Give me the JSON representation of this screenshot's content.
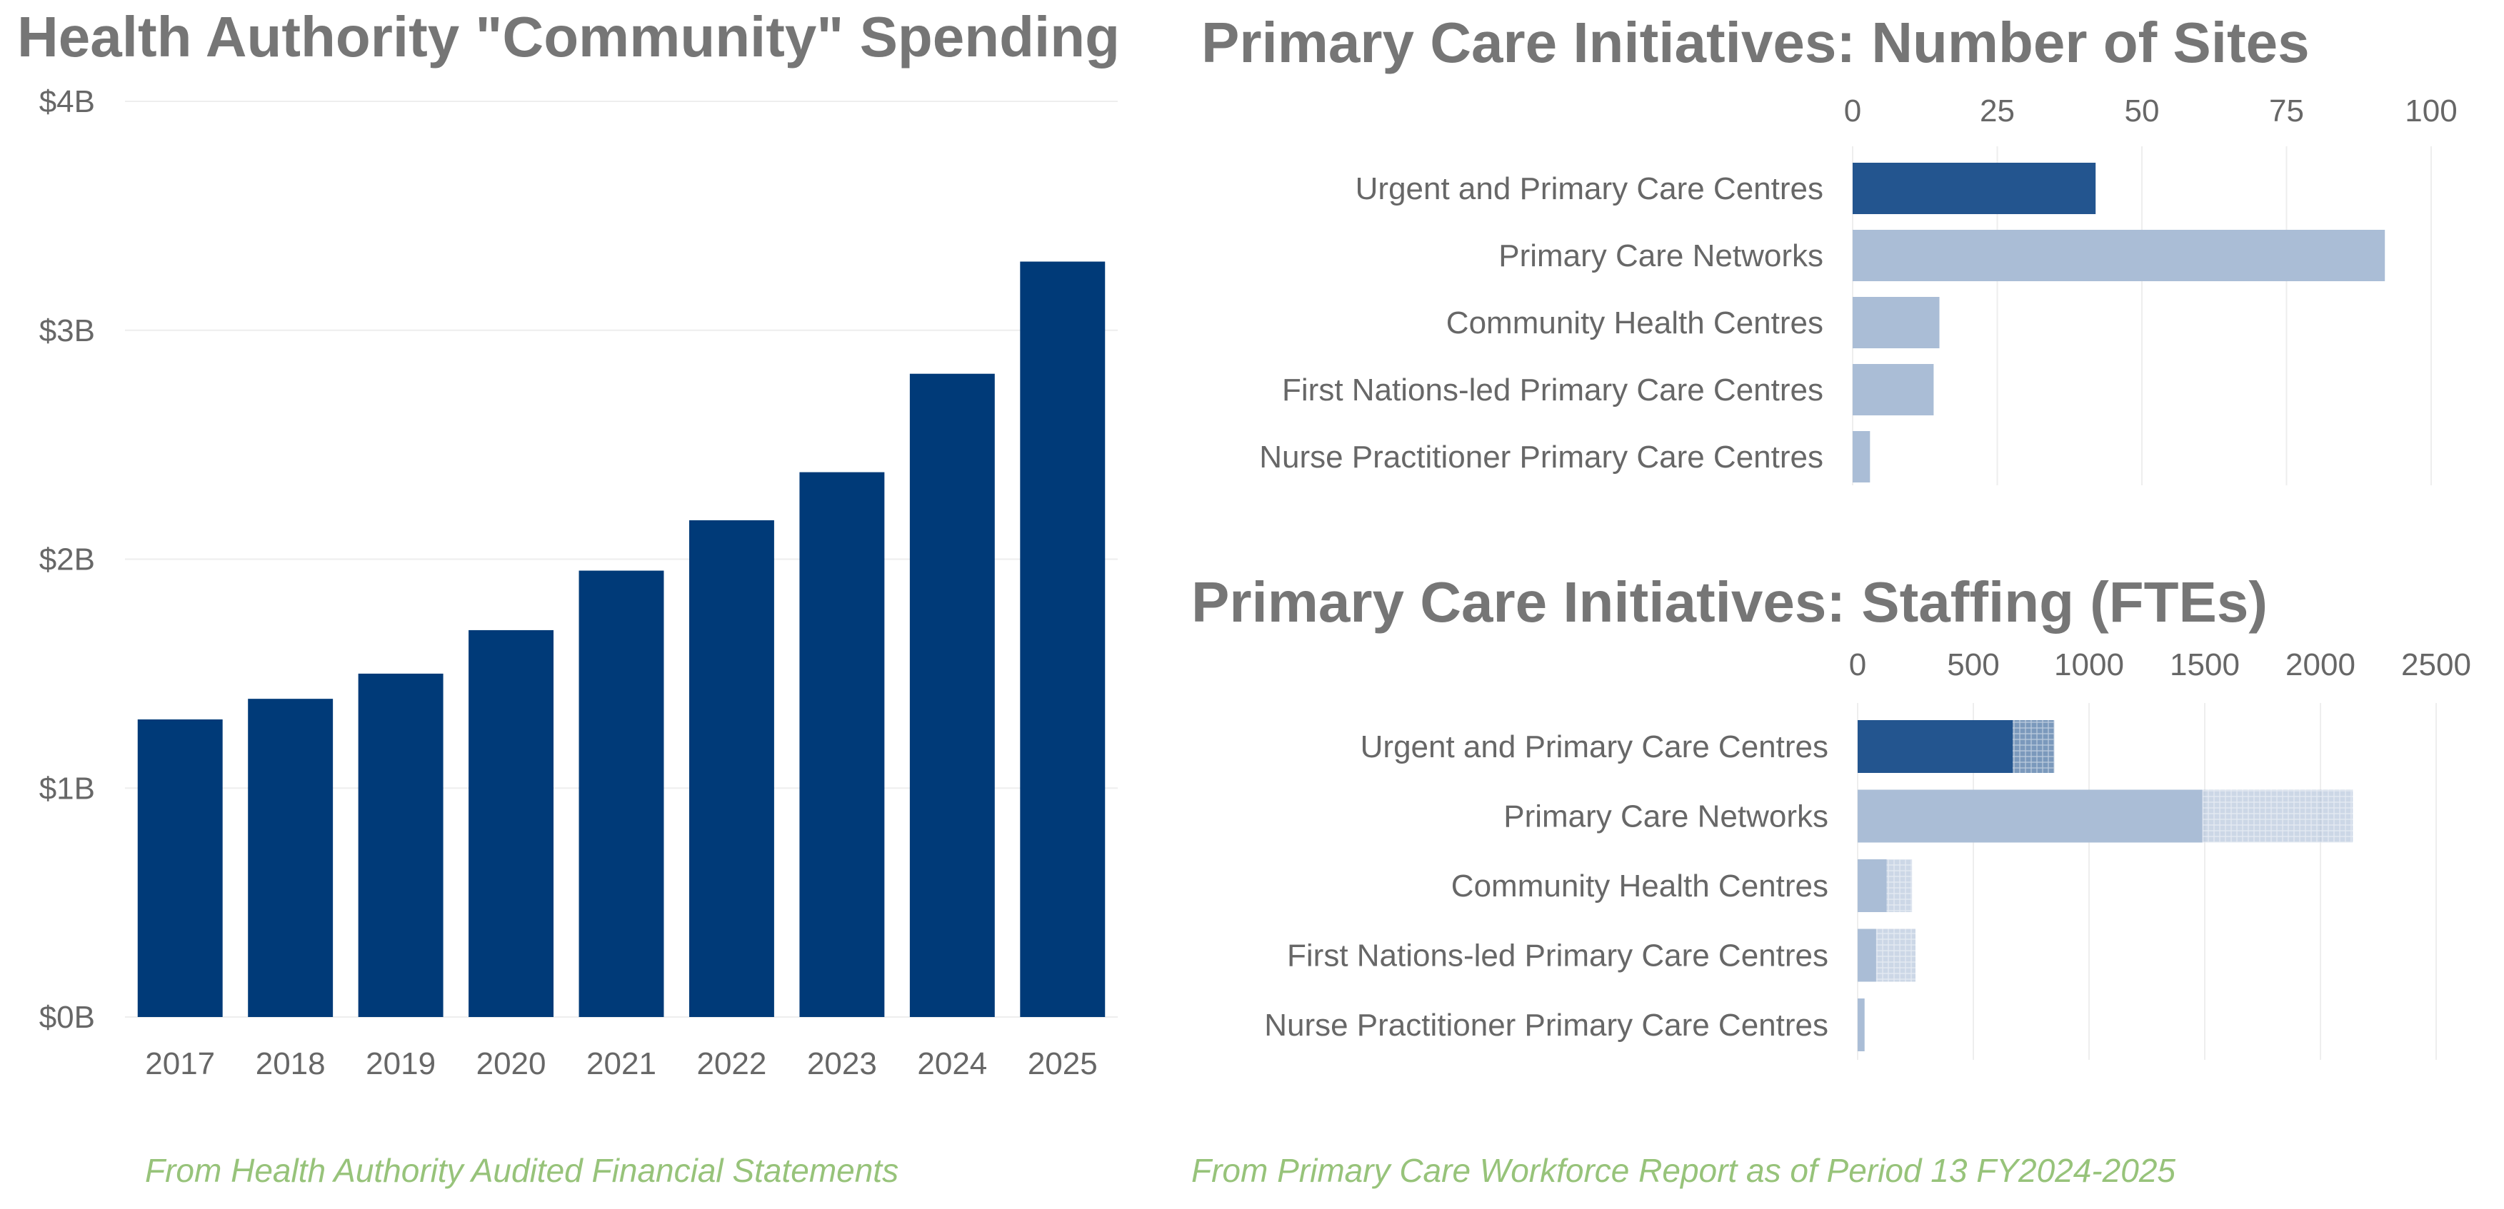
{
  "colors": {
    "title": "#767676",
    "axis_text": "#676767",
    "source_text": "#97c37a",
    "spend_bar": "#003a78",
    "highlight_bar": "#23558f",
    "light_bar": "#aabdd6",
    "gridline": "#eeeeee"
  },
  "chart_data": [
    {
      "id": "spending",
      "type": "bar",
      "title": "Health Authority \"Community\" Spending",
      "source": "From Health Authority Audited Financial Statements",
      "categories": [
        "2017",
        "2018",
        "2019",
        "2020",
        "2021",
        "2022",
        "2023",
        "2024",
        "2025"
      ],
      "values": [
        1.3,
        1.39,
        1.5,
        1.69,
        1.95,
        2.17,
        2.38,
        2.81,
        3.3
      ],
      "unit": "billion dollars",
      "ylim": [
        0,
        4
      ],
      "y_ticks": [
        {
          "value": 0,
          "label": "$0B"
        },
        {
          "value": 1,
          "label": "$1B"
        },
        {
          "value": 2,
          "label": "$2B"
        },
        {
          "value": 3,
          "label": "$3B"
        },
        {
          "value": 4,
          "label": "$4B"
        }
      ],
      "grid": true
    },
    {
      "id": "sites",
      "type": "bar",
      "orientation": "horizontal",
      "title": "Primary Care Initiatives: Number of Sites",
      "categories": [
        "Urgent and Primary Care Centres",
        "Primary Care Networks",
        "Community Health Centres",
        "First Nations-led Primary Care Centres",
        "Nurse Practitioner Primary Care Centres"
      ],
      "values": [
        42,
        92,
        15,
        14,
        3
      ],
      "highlight": [
        true,
        false,
        false,
        false,
        false
      ],
      "xlim": [
        0,
        100
      ],
      "x_ticks": [
        {
          "value": 0,
          "label": "0"
        },
        {
          "value": 25,
          "label": "25"
        },
        {
          "value": 50,
          "label": "50"
        },
        {
          "value": 75,
          "label": "75"
        },
        {
          "value": 100,
          "label": "100"
        }
      ],
      "x_axis_position": "top",
      "grid": true
    },
    {
      "id": "staffing",
      "type": "bar",
      "orientation": "horizontal",
      "stacked": true,
      "title": "Primary Care Initiatives: Staffing (FTEs)",
      "source": "From Primary Care Workforce Report as of Period 13 FY2024-2025",
      "categories": [
        "Urgent and Primary Care Centres",
        "Primary Care Networks",
        "Community Health Centres",
        "First Nations-led Primary Care Centres",
        "Nurse Practitioner Primary Care Centres"
      ],
      "series": [
        {
          "values": [
            670,
            1490,
            125,
            80,
            30
          ]
        },
        {
          "values": [
            180,
            650,
            110,
            170,
            0
          ]
        }
      ],
      "highlight": [
        true,
        false,
        false,
        false,
        false
      ],
      "xlim": [
        0,
        2500
      ],
      "x_ticks": [
        {
          "value": 0,
          "label": "0"
        },
        {
          "value": 500,
          "label": "500"
        },
        {
          "value": 1000,
          "label": "1000"
        },
        {
          "value": 1500,
          "label": "1500"
        },
        {
          "value": 2000,
          "label": "2000"
        },
        {
          "value": 2500,
          "label": "2500"
        }
      ],
      "x_axis_position": "top",
      "grid": true
    }
  ]
}
